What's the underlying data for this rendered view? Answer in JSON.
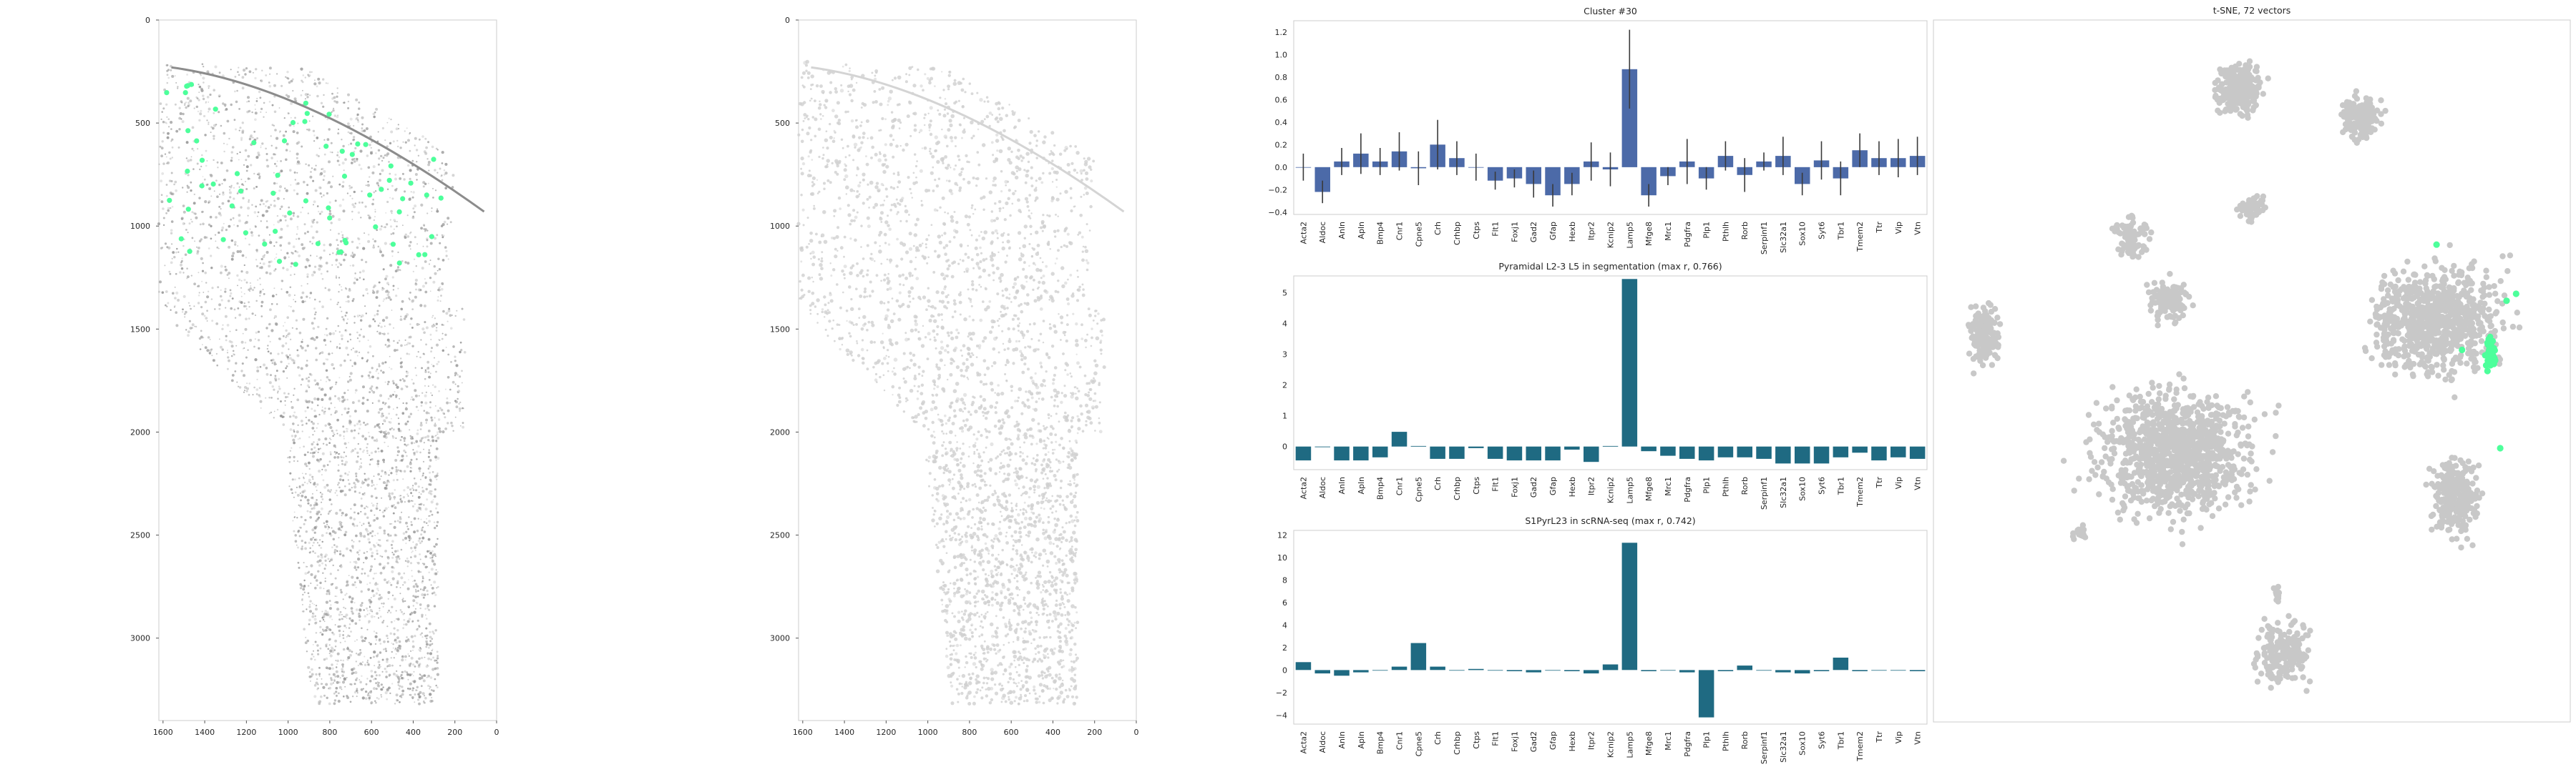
{
  "colors": {
    "panel_border": "#cccccc",
    "tissue_gray": "#b8b8b8",
    "highlight_green": "#4dff9b",
    "bar_blue": "#4c6aa8",
    "bar_teal": "#1f6a82",
    "tsne_gray": "#c8c8c8"
  },
  "image_panels": [
    {
      "xticks": [
        "1600",
        "1400",
        "1200",
        "1000",
        "800",
        "600",
        "400",
        "200",
        "0"
      ],
      "yticks": [
        "0",
        "500",
        "1000",
        "1500",
        "2000",
        "2500",
        "3000"
      ],
      "xlim": [
        1620,
        0
      ],
      "ylim": [
        3400,
        0
      ],
      "highlights": true
    },
    {
      "xticks": [
        "1600",
        "1400",
        "1200",
        "1000",
        "800",
        "600",
        "400",
        "200",
        "0"
      ],
      "yticks": [
        "0",
        "500",
        "1000",
        "1500",
        "2000",
        "2500",
        "3000"
      ],
      "xlim": [
        1620,
        0
      ],
      "ylim": [
        3400,
        0
      ],
      "highlights": false
    }
  ],
  "chart_data": [
    {
      "type": "bar",
      "title": "Cluster #30",
      "categories": [
        "Acta2",
        "Aldoc",
        "Anln",
        "Apln",
        "Bmp4",
        "Cnr1",
        "Cpne5",
        "Crh",
        "Crhbp",
        "Ctps",
        "Flt1",
        "Foxj1",
        "Gad2",
        "Gfap",
        "Hexb",
        "Itpr2",
        "Kcnip2",
        "Lamp5",
        "Mfge8",
        "Mrc1",
        "Pdgfra",
        "Plp1",
        "Pthlh",
        "Rorb",
        "Serpinf1",
        "Slc32a1",
        "Sox10",
        "Syt6",
        "Tbr1",
        "Tmem2",
        "Ttr",
        "Vip",
        "Vtn"
      ],
      "values": [
        0.0,
        -0.22,
        0.05,
        0.12,
        0.05,
        0.14,
        -0.01,
        0.2,
        0.08,
        0.0,
        -0.12,
        -0.1,
        -0.15,
        -0.25,
        -0.15,
        0.05,
        -0.02,
        0.87,
        -0.25,
        -0.08,
        0.05,
        -0.1,
        0.1,
        -0.07,
        0.05,
        0.1,
        -0.15,
        0.06,
        -0.1,
        0.15,
        0.08,
        0.08,
        0.1
      ],
      "errors": [
        0.12,
        0.1,
        0.12,
        0.18,
        0.12,
        0.17,
        0.15,
        0.22,
        0.15,
        0.12,
        0.08,
        0.08,
        0.12,
        0.1,
        0.1,
        0.17,
        0.15,
        0.35,
        0.1,
        0.08,
        0.2,
        0.1,
        0.13,
        0.15,
        0.08,
        0.17,
        0.1,
        0.17,
        0.15,
        0.15,
        0.15,
        0.17,
        0.17
      ],
      "ylim": [
        -0.42,
        1.3
      ],
      "yticks": [
        -0.4,
        -0.2,
        0.0,
        0.2,
        0.4,
        0.6,
        0.8,
        1.0,
        1.2
      ],
      "ytick_labels": [
        "−0.4",
        "−0.2",
        "0.0",
        "0.2",
        "0.4",
        "0.6",
        "0.8",
        "1.0",
        "1.2"
      ],
      "color": "#4c6aa8"
    },
    {
      "type": "bar",
      "title": "Pyramidal L2-3 L5 in segmentation (max r, 0.766)",
      "categories": [
        "Acta2",
        "Aldoc",
        "Anln",
        "Apln",
        "Bmp4",
        "Cnr1",
        "Cpne5",
        "Crh",
        "Crhbp",
        "Ctps",
        "Flt1",
        "Foxj1",
        "Gad2",
        "Gfap",
        "Hexb",
        "Itpr2",
        "Kcnip2",
        "Lamp5",
        "Mfge8",
        "Mrc1",
        "Pdgfra",
        "Plp1",
        "Pthlh",
        "Rorb",
        "Serpinf1",
        "Slc32a1",
        "Sox10",
        "Syt6",
        "Tbr1",
        "Tmem2",
        "Ttr",
        "Vip",
        "Vtn"
      ],
      "values": [
        -0.45,
        -0.02,
        -0.45,
        -0.45,
        -0.35,
        0.48,
        0.02,
        -0.4,
        -0.4,
        -0.05,
        -0.4,
        -0.45,
        -0.45,
        -0.45,
        -0.1,
        -0.5,
        0.02,
        5.45,
        -0.15,
        -0.3,
        -0.4,
        -0.45,
        -0.35,
        -0.35,
        -0.4,
        -0.55,
        -0.55,
        -0.55,
        -0.35,
        -0.2,
        -0.45,
        -0.35,
        -0.4
      ],
      "ylim": [
        -0.75,
        5.55
      ],
      "yticks": [
        0,
        1,
        2,
        3,
        4,
        5
      ],
      "ytick_labels": [
        "0",
        "1",
        "2",
        "3",
        "4",
        "5"
      ],
      "color": "#1f6a82"
    },
    {
      "type": "bar",
      "title": "S1PyrL23 in scRNA-seq (max r, 0.742)",
      "categories": [
        "Acta2",
        "Aldoc",
        "Anln",
        "Apln",
        "Bmp4",
        "Cnr1",
        "Cpne5",
        "Crh",
        "Crhbp",
        "Ctps",
        "Flt1",
        "Foxj1",
        "Gad2",
        "Gfap",
        "Hexb",
        "Itpr2",
        "Kcnip2",
        "Lamp5",
        "Mfge8",
        "Mrc1",
        "Pdgfra",
        "Plp1",
        "Pthlh",
        "Rorb",
        "Serpinf1",
        "Slc32a1",
        "Sox10",
        "Syt6",
        "Tbr1",
        "Tmem2",
        "Ttr",
        "Vip",
        "Vtn"
      ],
      "values": [
        0.7,
        -0.3,
        -0.5,
        -0.2,
        0.0,
        0.3,
        2.4,
        0.3,
        0.0,
        0.1,
        0.0,
        -0.1,
        -0.2,
        0.0,
        -0.1,
        -0.3,
        0.5,
        11.3,
        -0.1,
        0.0,
        -0.2,
        -4.2,
        -0.1,
        0.4,
        0.0,
        -0.2,
        -0.3,
        -0.1,
        1.1,
        -0.1,
        0.0,
        0.0,
        -0.1
      ],
      "ylim": [
        -4.8,
        12.4
      ],
      "yticks": [
        -4,
        -2,
        0,
        2,
        4,
        6,
        8,
        10,
        12
      ],
      "ytick_labels": [
        "−4",
        "−2",
        "0",
        "2",
        "4",
        "6",
        "8",
        "10",
        "12"
      ],
      "color": "#1f6a82"
    },
    {
      "type": "scatter",
      "title": "t-SNE, 72 vectors",
      "clusters": [
        {
          "cx": 0.48,
          "cy": 0.1,
          "rx": 0.06,
          "ry": 0.06,
          "n": 260
        },
        {
          "cx": 0.67,
          "cy": 0.14,
          "rx": 0.05,
          "ry": 0.05,
          "n": 190
        },
        {
          "cx": 0.5,
          "cy": 0.27,
          "rx": 0.035,
          "ry": 0.03,
          "n": 60
        },
        {
          "cx": 0.31,
          "cy": 0.31,
          "rx": 0.04,
          "ry": 0.05,
          "n": 100
        },
        {
          "cx": 0.08,
          "cy": 0.45,
          "rx": 0.04,
          "ry": 0.07,
          "n": 150
        },
        {
          "cx": 0.38,
          "cy": 0.62,
          "rx": 0.2,
          "ry": 0.15,
          "n": 1100
        },
        {
          "cx": 0.37,
          "cy": 0.4,
          "rx": 0.05,
          "ry": 0.05,
          "n": 120
        },
        {
          "cx": 0.79,
          "cy": 0.43,
          "rx": 0.17,
          "ry": 0.13,
          "n": 800
        },
        {
          "cx": 0.82,
          "cy": 0.68,
          "rx": 0.06,
          "ry": 0.09,
          "n": 300
        },
        {
          "cx": 0.23,
          "cy": 0.73,
          "rx": 0.02,
          "ry": 0.02,
          "n": 25
        },
        {
          "cx": 0.55,
          "cy": 0.9,
          "rx": 0.07,
          "ry": 0.07,
          "n": 200
        },
        {
          "cx": 0.54,
          "cy": 0.82,
          "rx": 0.01,
          "ry": 0.02,
          "n": 12
        },
        {
          "cx": 0.44,
          "cy": 0.6,
          "rx": 0.02,
          "ry": 0.02,
          "n": 20
        }
      ],
      "highlight_points": [
        {
          "x": 0.87,
          "y": 0.46
        },
        {
          "x": 0.88,
          "y": 0.47
        },
        {
          "x": 0.875,
          "y": 0.48
        },
        {
          "x": 0.88,
          "y": 0.49
        },
        {
          "x": 0.87,
          "y": 0.5
        },
        {
          "x": 0.882,
          "y": 0.485
        },
        {
          "x": 0.872,
          "y": 0.455
        },
        {
          "x": 0.9,
          "y": 0.4
        },
        {
          "x": 0.915,
          "y": 0.39
        },
        {
          "x": 0.83,
          "y": 0.47
        },
        {
          "x": 0.79,
          "y": 0.32
        },
        {
          "x": 0.89,
          "y": 0.61
        },
        {
          "x": 0.868,
          "y": 0.492
        },
        {
          "x": 0.876,
          "y": 0.465
        }
      ]
    }
  ]
}
